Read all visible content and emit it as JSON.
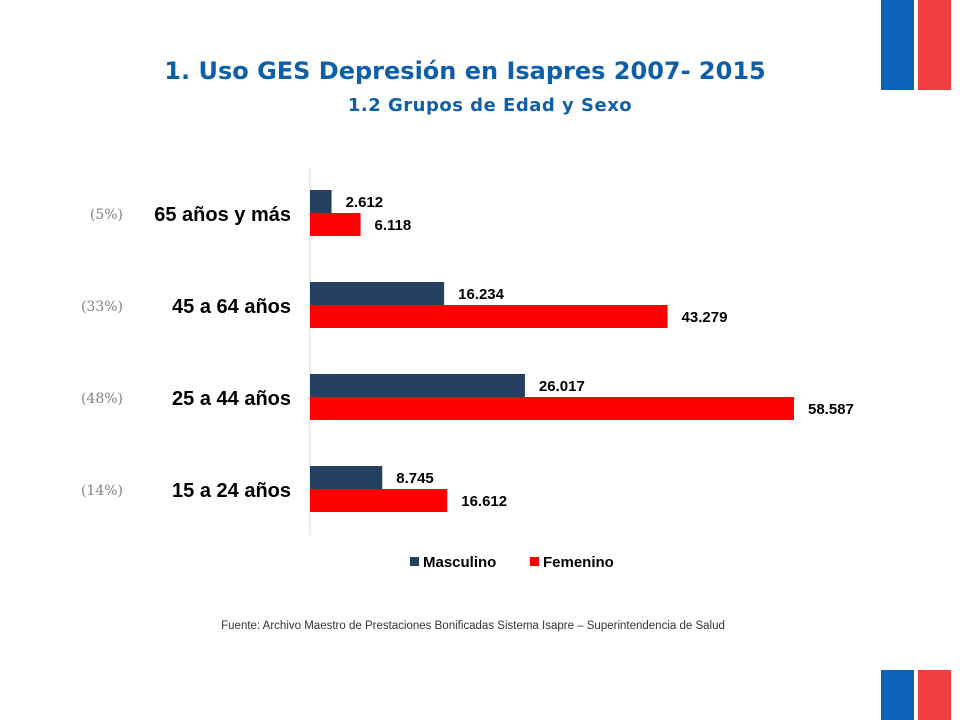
{
  "title": "1. Uso GES Depresión en Isapres 2007- 2015",
  "subtitle": "1.2 Grupos de Edad y Sexo",
  "source": "Fuente: Archivo Maestro de Prestaciones Bonificadas Sistema Isapre – Superintendencia de Salud",
  "chart_data": {
    "type": "bar",
    "orientation": "horizontal",
    "title": "",
    "xlabel": "",
    "ylabel": "",
    "categories": [
      "65 años y más",
      "45 a 64 años",
      "25 a 44 años",
      "15 a 24 años"
    ],
    "category_shares": [
      "(5%)",
      "(33%)",
      "(48%)",
      "(14%)"
    ],
    "series": [
      {
        "name": "Masculino",
        "color": "#243f60",
        "values": [
          2612,
          16234,
          26017,
          8745
        ],
        "labels": [
          "2.612",
          "16.234",
          "26.017",
          "8.745"
        ]
      },
      {
        "name": "Femenino",
        "color": "#ff0000",
        "values": [
          6118,
          43279,
          58587,
          16612
        ],
        "labels": [
          "6.118",
          "43.279",
          "58.587",
          "16.612"
        ]
      }
    ],
    "xlim": [
      0,
      58587
    ],
    "grid": false,
    "legend": "bottom"
  }
}
